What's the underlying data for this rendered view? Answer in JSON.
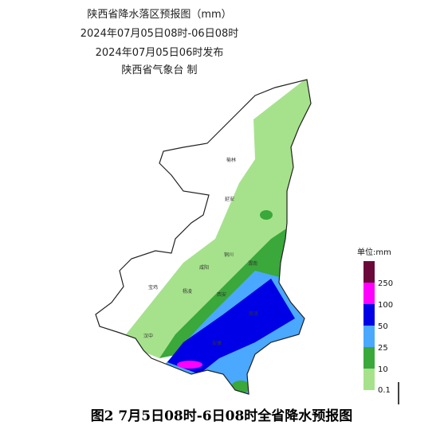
{
  "header": {
    "title": "陕西省降水落区预报图（mm）",
    "period": "2024年07月05日08时-06日08时",
    "issued": "2024年07月05日06时发布",
    "issuer": "陕西省气象台 制"
  },
  "cities": [
    {
      "label": "榆林"
    },
    {
      "label": "延安"
    },
    {
      "label": "铜川"
    },
    {
      "label": "渭南"
    },
    {
      "label": "咸阳"
    },
    {
      "label": "宝鸡"
    },
    {
      "label": "杨凌"
    },
    {
      "label": "西安"
    },
    {
      "label": "商洛"
    },
    {
      "label": "汉中"
    },
    {
      "label": "安康"
    }
  ],
  "legend": {
    "unit": "单位:mm",
    "labels": [
      "250",
      "100",
      "50",
      "25",
      "10",
      "0.1"
    ]
  },
  "caption": "图2  7月5日08时-6日08时全省降水预报图"
}
